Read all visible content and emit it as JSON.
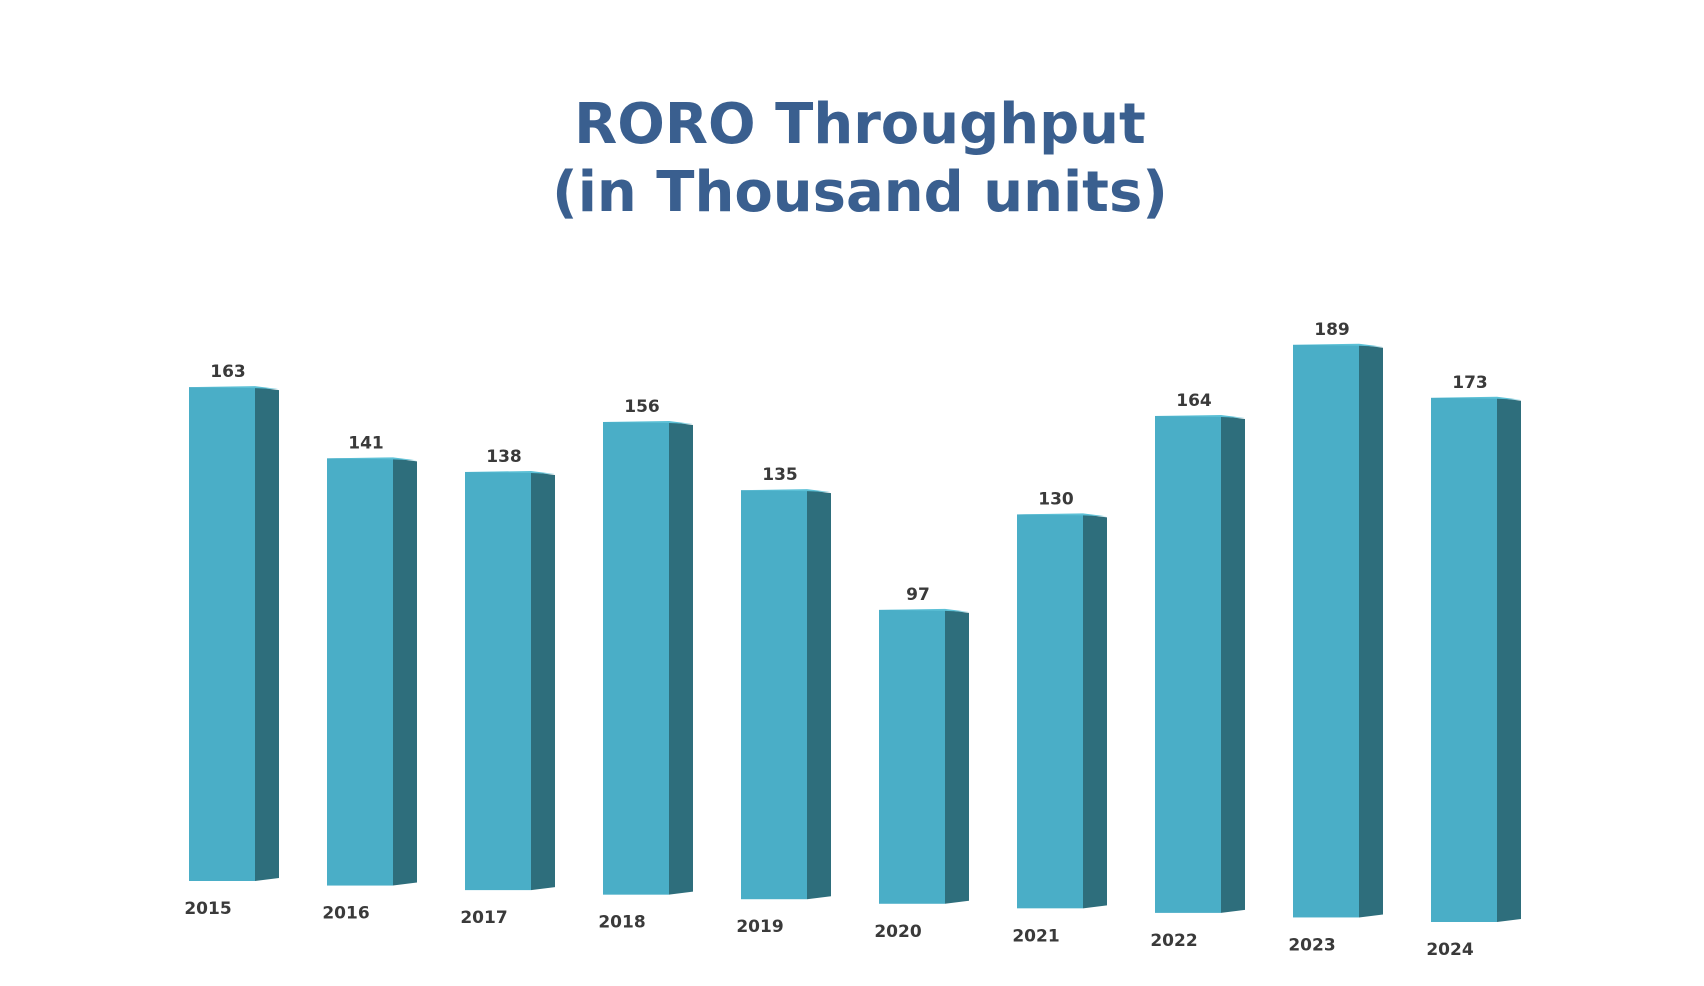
{
  "chart_data": {
    "type": "bar",
    "title": "RORO Throughput",
    "subtitle": "(in Thousand units)",
    "categories": [
      "2015",
      "2016",
      "2017",
      "2018",
      "2019",
      "2020",
      "2021",
      "2022",
      "2023",
      "2024"
    ],
    "values": [
      163,
      141,
      138,
      156,
      135,
      97,
      130,
      164,
      189,
      173
    ],
    "data_labels": [
      "163",
      "141",
      "138",
      "156",
      "135",
      "97",
      "130",
      "164",
      "189",
      "173"
    ],
    "xlabel": "",
    "ylabel": "",
    "ylim": [
      0,
      200
    ],
    "grid": false,
    "legend": "none",
    "style": "3d-columns"
  },
  "colors": {
    "title": "#3a5f8f",
    "bar_front": "#4aaec7",
    "bar_side": "#2e6e7c",
    "bar_top": "#5cc0d6",
    "label": "#3a3a3a",
    "background": "#ffffff"
  }
}
